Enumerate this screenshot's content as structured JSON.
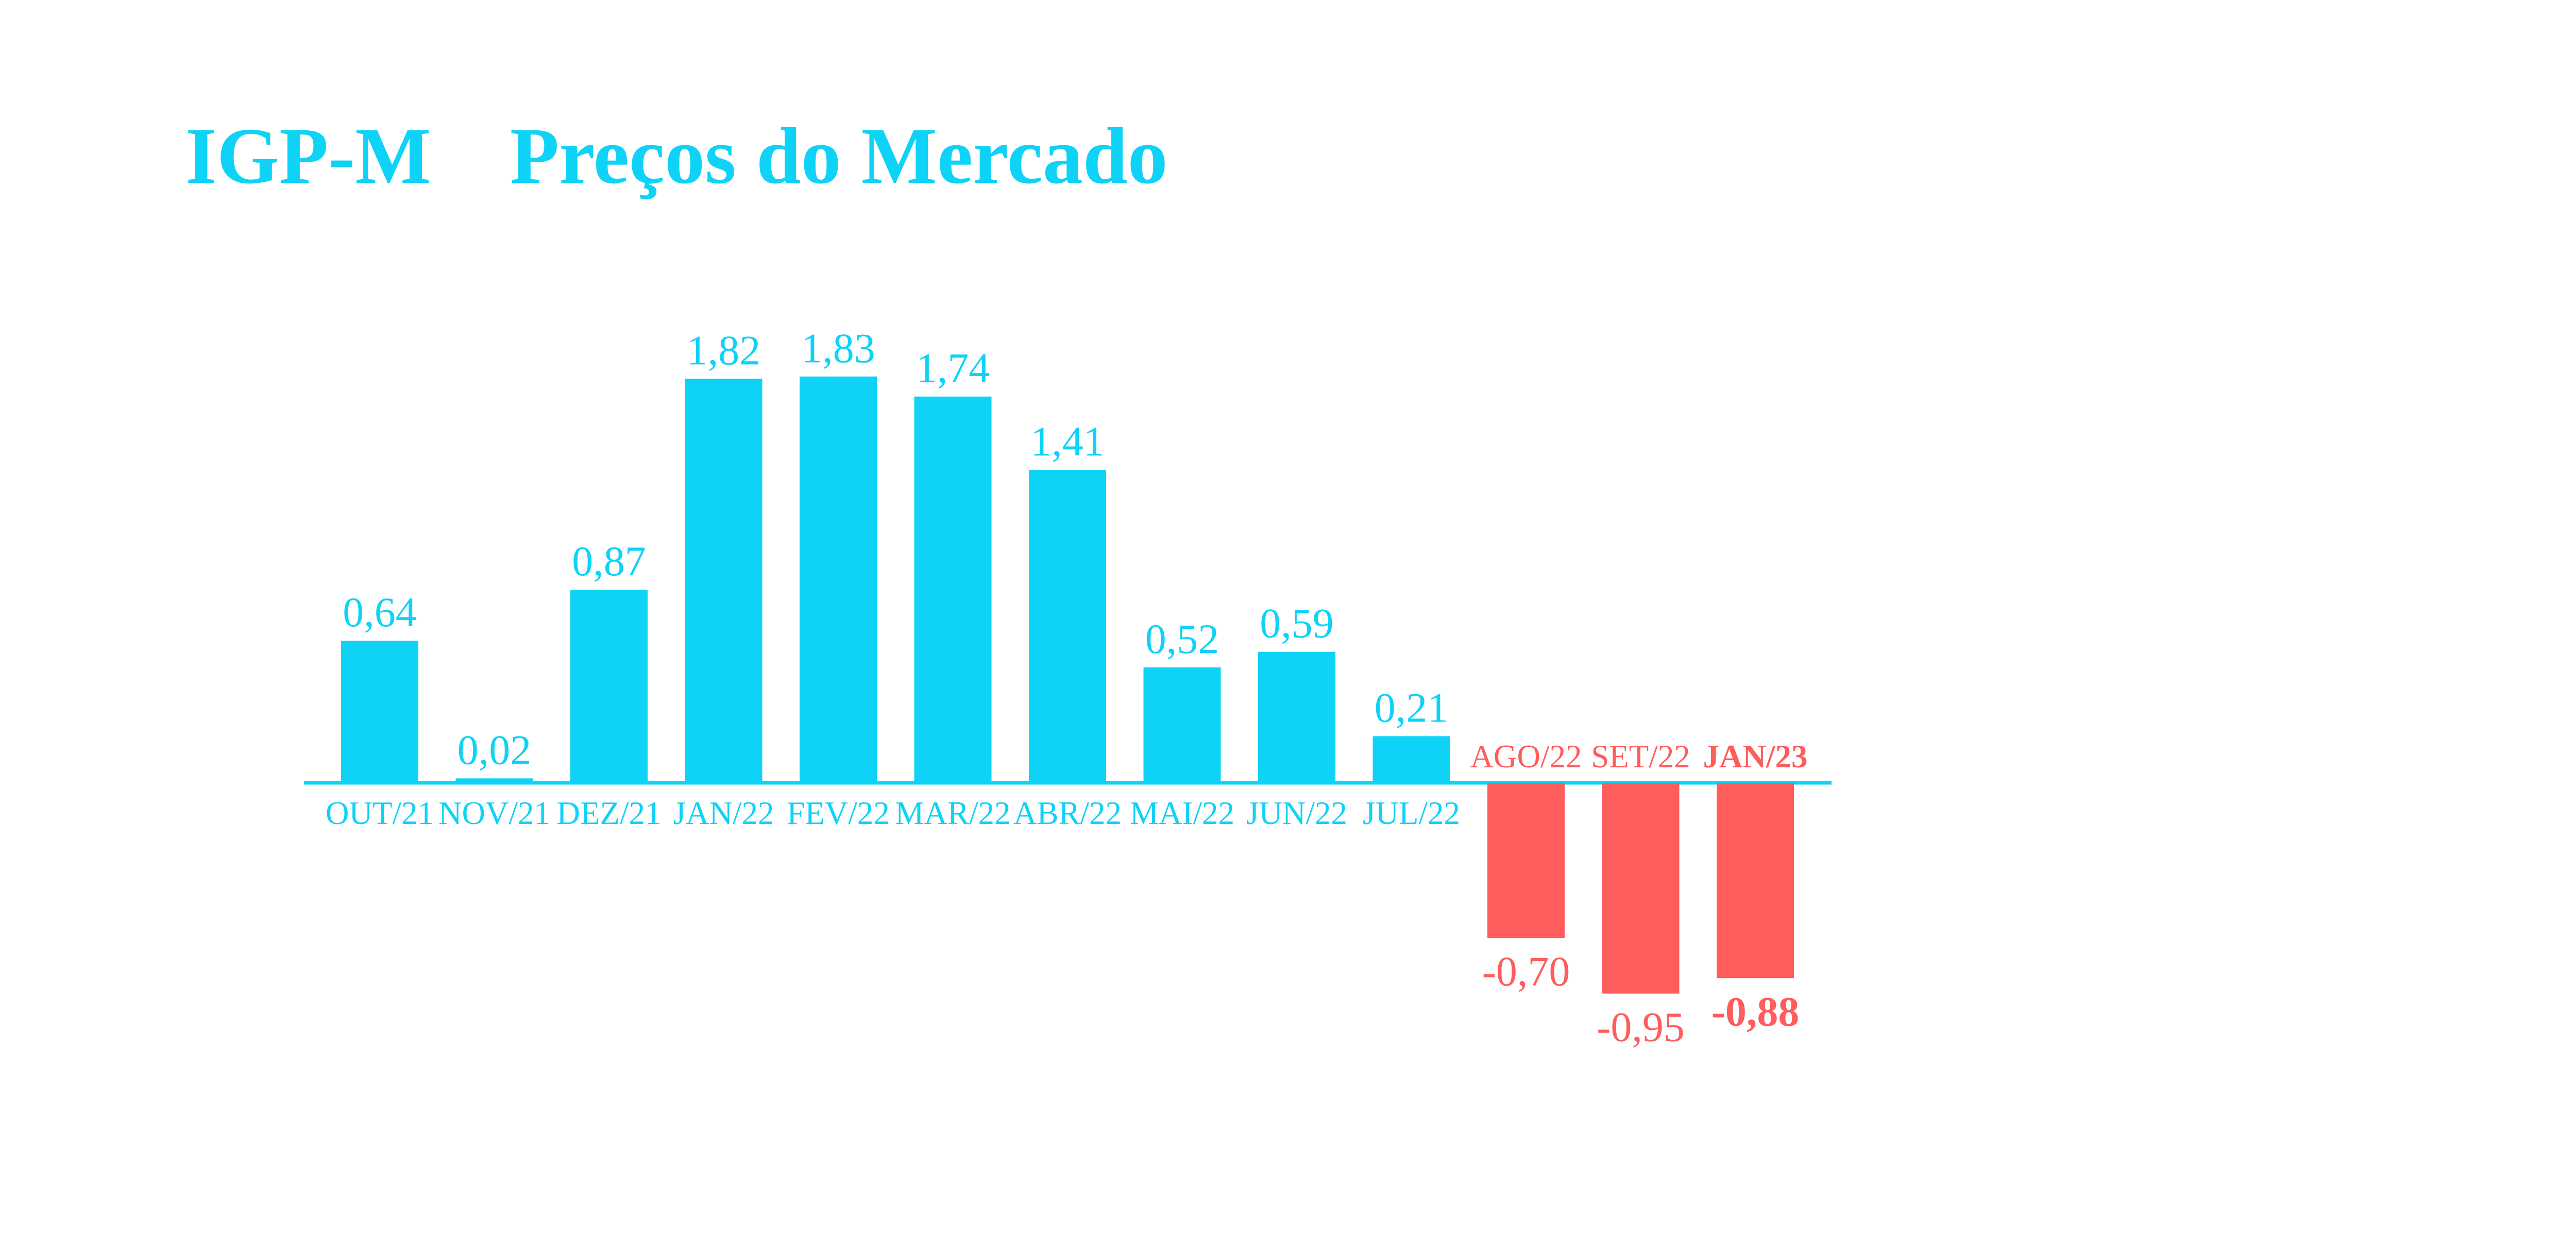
{
  "title": {
    "part1": "IGP-M",
    "part2": "Preços do Mercado"
  },
  "colors": {
    "positive": "#0FD2F7",
    "negative": "#FF5C5C",
    "title": "#0FD2F7"
  },
  "chart_data": {
    "type": "bar",
    "title": "IGP-M   Preços do Mercado",
    "xlabel": "",
    "ylabel": "",
    "ylim": [
      -1.2,
      2.2
    ],
    "grid": false,
    "categories": [
      "OUT/21",
      "NOV/21",
      "DEZ/21",
      "JAN/22",
      "FEV/22",
      "MAR/22",
      "ABR/22",
      "MAI/22",
      "JUN/22",
      "JUL/22",
      "AGO/22",
      "SET/22",
      "JAN/23"
    ],
    "values": [
      0.64,
      0.02,
      0.87,
      1.82,
      1.83,
      1.74,
      1.41,
      0.52,
      0.59,
      0.21,
      -0.7,
      -0.95,
      -0.88
    ],
    "value_labels": [
      "0,64",
      "0,02",
      "0,87",
      "1,82",
      "1,83",
      "1,74",
      "1,41",
      "0,52",
      "0,59",
      "0,21",
      "-0,70",
      "-0,95",
      "-0,88"
    ],
    "highlighted": [
      "JAN/23"
    ]
  }
}
